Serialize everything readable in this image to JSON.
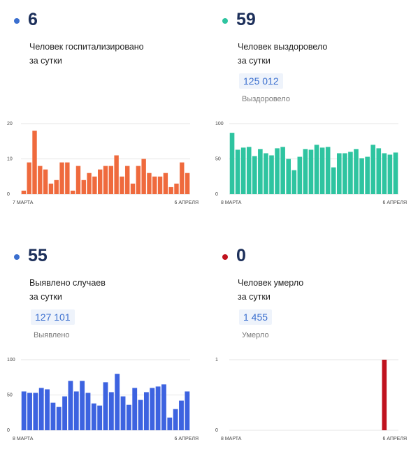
{
  "panels": [
    {
      "number": "6",
      "label": "Человек госпитализировано\nза сутки",
      "total": "",
      "total_label": "",
      "color": "#ef6a3d",
      "dot_color": "#3b6fcf"
    },
    {
      "number": "59",
      "label": "Человек выздоровело\nза сутки",
      "total": "125 012",
      "total_label": "Выздоровело",
      "color": "#2ec4a0",
      "dot_color": "#2ec4a0"
    },
    {
      "number": "55",
      "label": "Выявлено случаев\nза сутки",
      "total": "127 101",
      "total_label": "Выявлено",
      "color": "#3d63e0",
      "dot_color": "#3b6fcf"
    },
    {
      "number": "0",
      "label": "Человек умерло\nза сутки",
      "total": "1 455",
      "total_label": "Умерло",
      "color": "#c0121e",
      "dot_color": "#c0121e"
    }
  ],
  "chart_data": [
    {
      "type": "bar",
      "ylim": [
        0,
        20
      ],
      "yticks": [
        "20",
        "10",
        "0"
      ],
      "x_start": "7 МАРТА",
      "x_end": "6 АПРЕЛЯ",
      "values": [
        1,
        9,
        18,
        8,
        7,
        3,
        4,
        9,
        9,
        1,
        8,
        4,
        6,
        5,
        7,
        8,
        8,
        11,
        5,
        8,
        3,
        8,
        10,
        6,
        5,
        5,
        6,
        2,
        3,
        9,
        6
      ]
    },
    {
      "type": "bar",
      "ylim": [
        0,
        100
      ],
      "yticks": [
        "100",
        "50",
        "0"
      ],
      "x_start": "8 МАРТА",
      "x_end": "6 АПРЕЛЯ",
      "values": [
        87,
        63,
        66,
        67,
        54,
        64,
        58,
        55,
        65,
        67,
        50,
        34,
        53,
        64,
        63,
        70,
        66,
        67,
        38,
        58,
        58,
        60,
        64,
        51,
        53,
        70,
        65,
        58,
        56,
        59
      ]
    },
    {
      "type": "bar",
      "ylim": [
        0,
        100
      ],
      "yticks": [
        "100",
        "50",
        "0"
      ],
      "x_start": "8 МАРТА",
      "x_end": "6 АПРЕЛЯ",
      "values": [
        55,
        53,
        53,
        60,
        58,
        39,
        33,
        48,
        70,
        55,
        70,
        53,
        38,
        35,
        68,
        54,
        80,
        48,
        36,
        60,
        43,
        54,
        60,
        62,
        65,
        18,
        30,
        42,
        55
      ]
    },
    {
      "type": "bar",
      "ylim": [
        0,
        1
      ],
      "yticks": [
        "1",
        "0"
      ],
      "x_start": "8 МАРТА",
      "x_end": "6 АПРЕЛЯ",
      "values": [
        0,
        0,
        0,
        0,
        0,
        0,
        0,
        0,
        0,
        0,
        0,
        0,
        0,
        0,
        0,
        0,
        0,
        0,
        0,
        0,
        0,
        0,
        0,
        0,
        0,
        0,
        0,
        1,
        0,
        0
      ]
    }
  ]
}
